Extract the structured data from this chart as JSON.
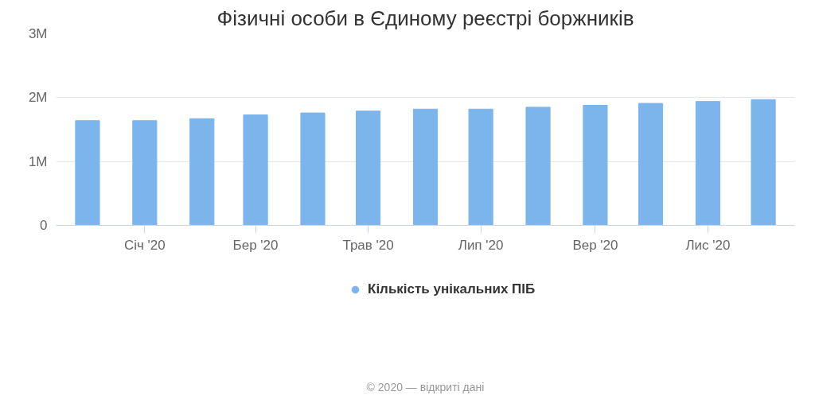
{
  "chart_data": {
    "type": "bar",
    "title": "Фізичні особи в Єдиному реєстрі боржників",
    "x": [
      "2019-12",
      "2020-01",
      "2020-02",
      "2020-03",
      "2020-04",
      "2020-05",
      "2020-06",
      "2020-07",
      "2020-08",
      "2020-09",
      "2020-10",
      "2020-11",
      "2020-12"
    ],
    "series": [
      {
        "name": "Кількість унікальних ПІБ",
        "color": "#7cb5ec",
        "values": [
          1640000,
          1640000,
          1670000,
          1730000,
          1760000,
          1790000,
          1820000,
          1820000,
          1850000,
          1880000,
          1910000,
          1940000,
          1970000
        ]
      }
    ],
    "xlim": [
      "2019-11-14",
      "2020-12-18"
    ],
    "xticks": [
      {
        "value": "2020-01",
        "label": "Січ '20"
      },
      {
        "value": "2020-03",
        "label": "Бер '20"
      },
      {
        "value": "2020-05",
        "label": "Трав '20"
      },
      {
        "value": "2020-07",
        "label": "Лип '20"
      },
      {
        "value": "2020-09",
        "label": "Вер '20"
      },
      {
        "value": "2020-11",
        "label": "Лис '20"
      }
    ],
    "ylim": [
      0,
      3000000
    ],
    "yticks": [
      {
        "value": 0,
        "label": "0"
      },
      {
        "value": 1000000,
        "label": "1M"
      },
      {
        "value": 2000000,
        "label": "2M"
      },
      {
        "value": 3000000,
        "label": "3M"
      }
    ],
    "grid": "y",
    "legend": "bottom",
    "annotations": [
      "© 2020 — відкриті дані"
    ]
  }
}
